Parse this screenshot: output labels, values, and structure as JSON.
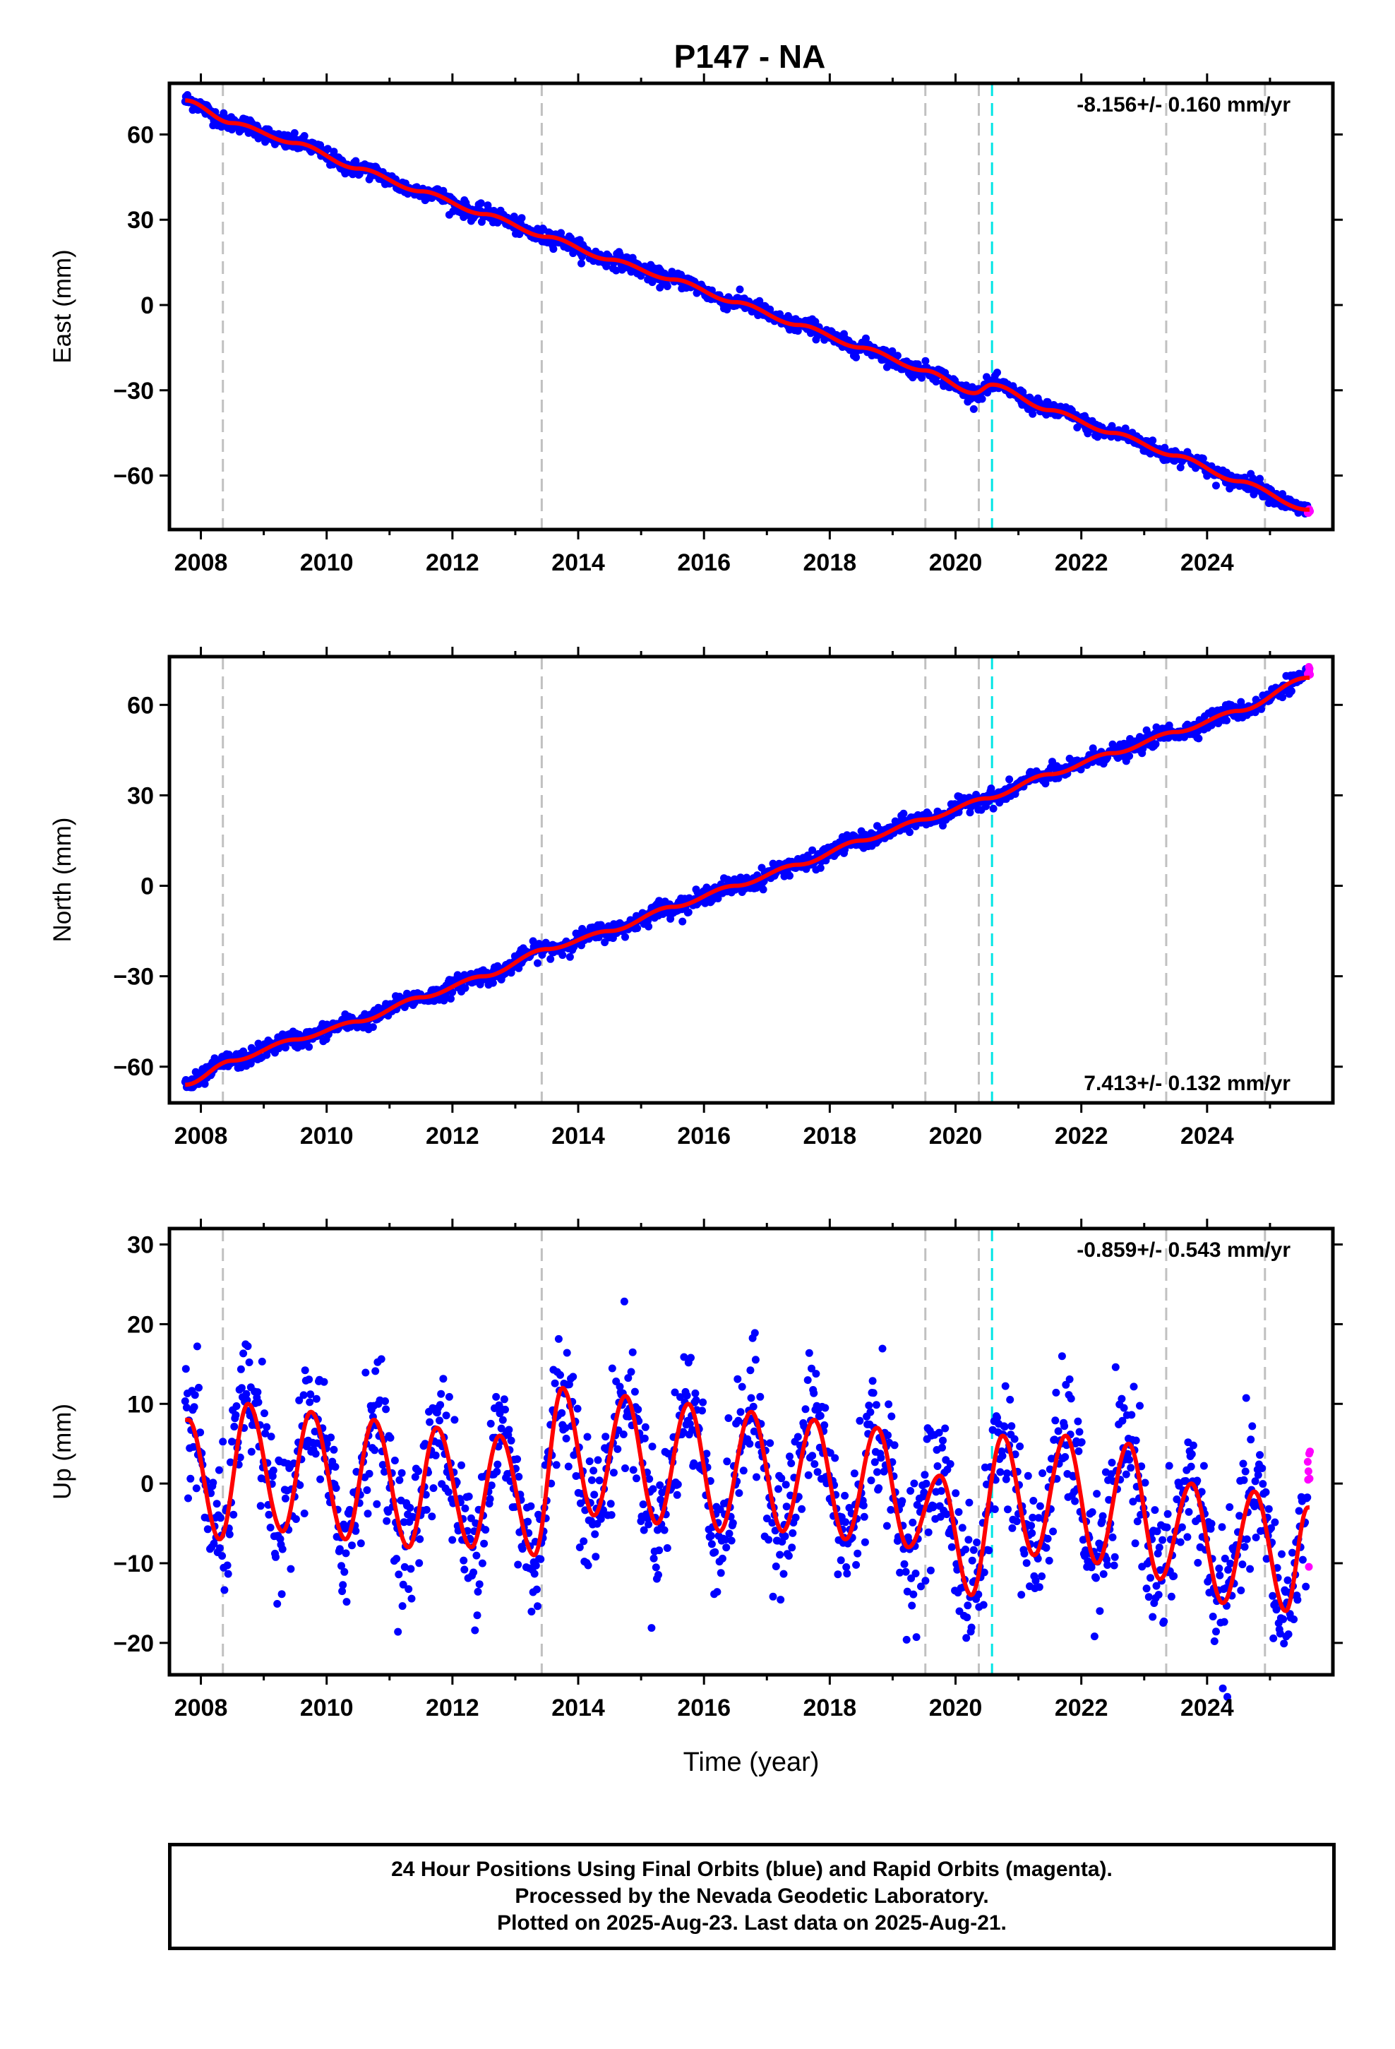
{
  "chart_data": {
    "title": "P147 - NA",
    "type": "scatter",
    "xlabel": "Time (year)",
    "xlim": [
      2007.5,
      2026.0
    ],
    "xticks": [
      "2008",
      "2010",
      "2012",
      "2014",
      "2016",
      "2018",
      "2020",
      "2022",
      "2024"
    ],
    "event_lines_gray": [
      2008.35,
      2013.42,
      2019.52,
      2020.37,
      2023.35,
      2024.92
    ],
    "event_lines_cyan": [
      2020.58
    ],
    "colors": {
      "final_orbits": "#0000ff",
      "rapid_orbits": "#ff00ff",
      "model_fit": "#ff0000",
      "event_line": "#c0c0c0",
      "antenna_event_line": "#00e5e5"
    },
    "data_start": 2007.75,
    "data_end": 2025.64,
    "panels": [
      {
        "key": "east",
        "ylabel": "East (mm)",
        "ylim": [
          -79,
          78
        ],
        "yticks": [
          "60",
          "30",
          "0",
          "−30",
          "−60"
        ],
        "rate_label": "-8.156+/- 0.160 mm/yr",
        "rate_position": "top-right",
        "series": [
          {
            "x": [
              2007.75,
              2008.5,
              2009.5,
              2010.5,
              2011.5,
              2012.5,
              2013.5,
              2014.5,
              2015.5,
              2016.5,
              2017.5,
              2018.5,
              2019.5,
              2020.3,
              2020.58,
              2021.5,
              2022.5,
              2023.5,
              2024.5,
              2025.6
            ],
            "y": [
              72,
              64,
              57,
              48,
              40,
              32,
              24,
              16,
              9,
              1,
              -7,
              -15,
              -23,
              -31,
              -28,
              -37,
              -45,
              -53,
              -62,
              -72
            ]
          }
        ]
      },
      {
        "key": "north",
        "ylabel": "North (mm)",
        "ylim": [
          -72,
          76
        ],
        "yticks": [
          "60",
          "30",
          "0",
          "−30",
          "−60"
        ],
        "rate_label": "7.413+/- 0.132 mm/yr",
        "rate_position": "bottom-right",
        "series": [
          {
            "x": [
              2007.75,
              2008.5,
              2009.5,
              2010.5,
              2011.5,
              2012.5,
              2013.5,
              2014.5,
              2015.5,
              2016.5,
              2017.5,
              2018.5,
              2019.5,
              2020.5,
              2021.5,
              2022.5,
              2023.5,
              2024.5,
              2025.6
            ],
            "y": [
              -66,
              -58,
              -51,
              -45,
              -37,
              -30,
              -21,
              -15,
              -7,
              0,
              7,
              15,
              22,
              29,
              37,
              44,
              51,
              58,
              69
            ]
          }
        ]
      },
      {
        "key": "up",
        "ylabel": "Up (mm)",
        "ylim": [
          -24,
          32
        ],
        "yticks": [
          "30",
          "20",
          "10",
          "0",
          "−10",
          "−20"
        ],
        "rate_label": "-0.859+/- 0.543 mm/yr",
        "rate_position": "top-right",
        "series": [
          {
            "x": [
              2007.8,
              2008.3,
              2008.75,
              2009.3,
              2009.75,
              2010.3,
              2010.75,
              2011.3,
              2011.75,
              2012.3,
              2012.75,
              2013.3,
              2013.75,
              2014.25,
              2014.75,
              2015.25,
              2015.75,
              2016.25,
              2016.75,
              2017.25,
              2017.75,
              2018.25,
              2018.75,
              2019.25,
              2019.75,
              2020.25,
              2020.75,
              2021.25,
              2021.75,
              2022.25,
              2022.75,
              2023.25,
              2023.75,
              2024.25,
              2024.75,
              2025.25,
              2025.6
            ],
            "y": [
              8,
              -7,
              10,
              -6,
              9,
              -7,
              8,
              -8,
              7,
              -8,
              6,
              -9,
              12,
              -4,
              11,
              -5,
              10,
              -6,
              9,
              -6,
              8,
              -7,
              7,
              -8,
              1,
              -14,
              6,
              -9,
              6,
              -10,
              5,
              -12,
              0,
              -15,
              -1,
              -16,
              -3
            ]
          }
        ]
      }
    ]
  },
  "footer": {
    "line1": "24 Hour Positions Using Final Orbits (blue) and Rapid Orbits (magenta).",
    "line2": "Processed by the Nevada Geodetic Laboratory.",
    "line3": "Plotted on 2025-Aug-23. Last data on 2025-Aug-21."
  }
}
